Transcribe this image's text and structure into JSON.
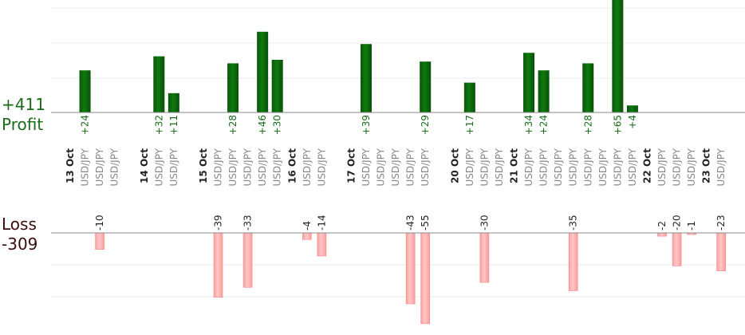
{
  "chart_data": {
    "type": "bar",
    "profit": {
      "total": "+411",
      "label": "Profit",
      "color": "#1a6b1a",
      "bar_color": "#0b5e0b",
      "trades": [
        {
          "slot": 1,
          "value": 24,
          "label": "+24"
        },
        {
          "slot": 6,
          "value": 32,
          "label": "+32"
        },
        {
          "slot": 7,
          "value": 11,
          "label": "+11"
        },
        {
          "slot": 11,
          "value": 28,
          "label": "+28"
        },
        {
          "slot": 13,
          "value": 46,
          "label": "+46"
        },
        {
          "slot": 14,
          "value": 30,
          "label": "+30"
        },
        {
          "slot": 20,
          "value": 39,
          "label": "+39"
        },
        {
          "slot": 24,
          "value": 29,
          "label": "+29"
        },
        {
          "slot": 27,
          "value": 17,
          "label": "+17"
        },
        {
          "slot": 31,
          "value": 34,
          "label": "+34"
        },
        {
          "slot": 32,
          "value": 24,
          "label": "+24"
        },
        {
          "slot": 35,
          "value": 28,
          "label": "+28"
        },
        {
          "slot": 37,
          "value": 65,
          "label": "+65"
        },
        {
          "slot": 38,
          "value": 4,
          "label": "+4"
        }
      ]
    },
    "loss": {
      "total": "-309",
      "label": "Loss",
      "color": "#3a0d0d",
      "bar_color": "#ffb3b3",
      "trades": [
        {
          "slot": 2,
          "value": -10,
          "label": "-10"
        },
        {
          "slot": 10,
          "value": -39,
          "label": "-39"
        },
        {
          "slot": 12,
          "value": -33,
          "label": "-33"
        },
        {
          "slot": 16,
          "value": -4,
          "label": "-4"
        },
        {
          "slot": 17,
          "value": -14,
          "label": "-14"
        },
        {
          "slot": 23,
          "value": -43,
          "label": "-43"
        },
        {
          "slot": 24,
          "value": -55,
          "label": "-55"
        },
        {
          "slot": 28,
          "value": -30,
          "label": "-30"
        },
        {
          "slot": 34,
          "value": -35,
          "label": "-35"
        },
        {
          "slot": 40,
          "value": -2,
          "label": "-2"
        },
        {
          "slot": 41,
          "value": -20,
          "label": "-20"
        },
        {
          "slot": 42,
          "value": -1,
          "label": "-1"
        },
        {
          "slot": 44,
          "value": -23,
          "label": "-23"
        }
      ]
    },
    "slots": [
      {
        "kind": "date",
        "text": "13 Oct"
      },
      {
        "kind": "pair",
        "text": "USD/JPY"
      },
      {
        "kind": "pair",
        "text": "USD/JPY"
      },
      {
        "kind": "pair",
        "text": "USD/JPY"
      },
      {
        "kind": "gap"
      },
      {
        "kind": "date",
        "text": "14 Oct"
      },
      {
        "kind": "pair",
        "text": "USD/JPY"
      },
      {
        "kind": "pair",
        "text": "USD/JPY"
      },
      {
        "kind": "gap"
      },
      {
        "kind": "date",
        "text": "15 Oct"
      },
      {
        "kind": "pair",
        "text": "USD/JPY"
      },
      {
        "kind": "pair",
        "text": "USD/JPY"
      },
      {
        "kind": "pair",
        "text": "USD/JPY"
      },
      {
        "kind": "pair",
        "text": "USD/JPY"
      },
      {
        "kind": "pair",
        "text": "USD/JPY"
      },
      {
        "kind": "date",
        "text": "16 Oct"
      },
      {
        "kind": "pair",
        "text": "USD/JPY"
      },
      {
        "kind": "pair",
        "text": "USD/JPY"
      },
      {
        "kind": "gap"
      },
      {
        "kind": "date",
        "text": "17 Oct"
      },
      {
        "kind": "pair",
        "text": "USD/JPY"
      },
      {
        "kind": "pair",
        "text": "USD/JPY"
      },
      {
        "kind": "pair",
        "text": "USD/JPY"
      },
      {
        "kind": "pair",
        "text": "USD/JPY"
      },
      {
        "kind": "pair",
        "text": "USD/JPY"
      },
      {
        "kind": "gap"
      },
      {
        "kind": "date",
        "text": "20 Oct"
      },
      {
        "kind": "pair",
        "text": "USD/JPY"
      },
      {
        "kind": "pair",
        "text": "USD/JPY"
      },
      {
        "kind": "pair",
        "text": "USD/JPY"
      },
      {
        "kind": "date",
        "text": "21 Oct"
      },
      {
        "kind": "pair",
        "text": "USD/JPY"
      },
      {
        "kind": "pair",
        "text": "USD/JPY"
      },
      {
        "kind": "pair",
        "text": "USD/JPY"
      },
      {
        "kind": "pair",
        "text": "USD/JPY"
      },
      {
        "kind": "pair",
        "text": "USD/JPY"
      },
      {
        "kind": "pair",
        "text": "USD/JPY"
      },
      {
        "kind": "pair",
        "text": "USD/JPY"
      },
      {
        "kind": "pair",
        "text": "USD/JPY"
      },
      {
        "kind": "date",
        "text": "22 Oct"
      },
      {
        "kind": "pair",
        "text": "USD/JPY"
      },
      {
        "kind": "pair",
        "text": "USD/JPY"
      },
      {
        "kind": "pair",
        "text": "USD/JPY"
      },
      {
        "kind": "date",
        "text": "23 Oct"
      },
      {
        "kind": "pair",
        "text": "USD/JPY"
      }
    ],
    "date_label_color": "#222222",
    "pair_label_color": "#888888",
    "grid": true
  }
}
